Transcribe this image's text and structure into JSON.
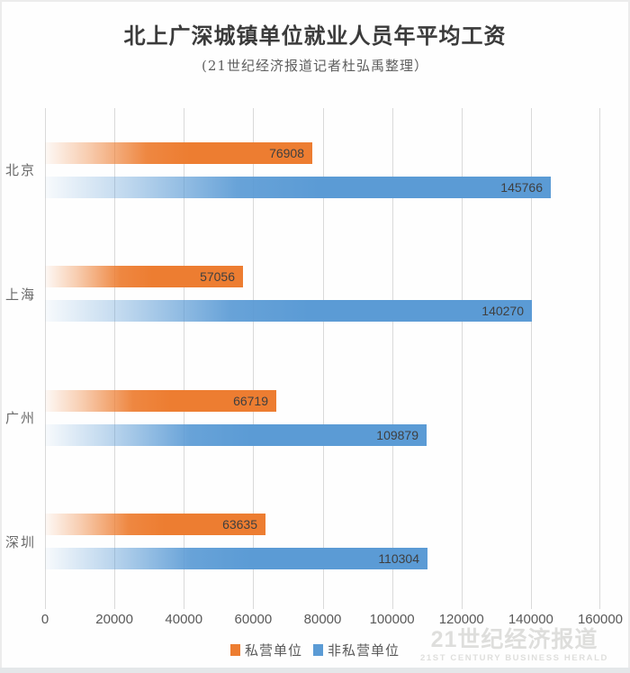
{
  "header": {
    "title": "北上广深城镇单位就业人员年平均工资",
    "subtitle": "(21世纪经济报道记者杜弘禹整理）"
  },
  "chart_data": {
    "type": "bar",
    "orientation": "horizontal",
    "title": "北上广深城镇单位就业人员年平均工资",
    "xlabel": "",
    "ylabel": "",
    "categories": [
      "北京",
      "上海",
      "广州",
      "深圳"
    ],
    "series": [
      {
        "name": "私营单位",
        "key": "private",
        "color": "#ED7D31",
        "values": [
          76908,
          57056,
          66719,
          63635
        ]
      },
      {
        "name": "非私营单位",
        "key": "nonprivate",
        "color": "#5B9BD5",
        "values": [
          145766,
          140270,
          109879,
          110304
        ]
      }
    ],
    "xlim": [
      0,
      160000
    ],
    "x_ticks": [
      0,
      20000,
      40000,
      60000,
      80000,
      100000,
      120000,
      140000,
      160000
    ],
    "grid": true,
    "legend_position": "bottom",
    "value_labels": "inside-end"
  },
  "legend": {
    "items": [
      {
        "key": "private",
        "label": "私营单位",
        "color": "#ED7D31"
      },
      {
        "key": "nonprivate",
        "label": "非私营单位",
        "color": "#5B9BD5"
      }
    ]
  },
  "watermark": {
    "line1": "21世纪经济报道",
    "line2": "21ST CENTURY BUSINESS HERALD"
  },
  "colors": {
    "grid": "#D9D9D9",
    "tick_label": "#595959",
    "category_label": "#6A6A6A",
    "value_label": "#3F3F3F",
    "title": "#3B3B3B",
    "subtitle": "#5F5F5F"
  }
}
